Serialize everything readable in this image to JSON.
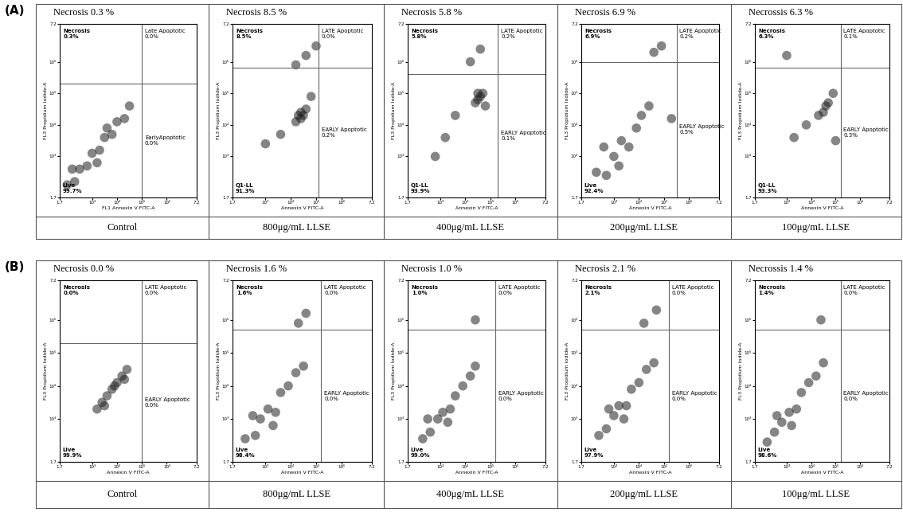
{
  "chart_data": {
    "type": "scatter",
    "axes": {
      "xlim": [
        1.7,
        7.2
      ],
      "ylim": [
        1.7,
        7.2
      ],
      "xticks": [
        {
          "value": 1.7,
          "label": "1.7"
        },
        {
          "value": 3,
          "label": "10³"
        },
        {
          "value": 4,
          "label": "10⁴"
        },
        {
          "value": 5,
          "label": "10⁵"
        },
        {
          "value": 6,
          "label": "10⁶"
        },
        {
          "value": 7.2,
          "label": "7.2"
        }
      ],
      "yticks": [
        {
          "value": 1.7,
          "label": "1.7"
        },
        {
          "value": 3,
          "label": "10³"
        },
        {
          "value": 4,
          "label": "10⁴"
        },
        {
          "value": 5,
          "label": "10⁵"
        },
        {
          "value": 6,
          "label": "10⁶"
        },
        {
          "value": 7.2,
          "label": "7.2"
        }
      ],
      "color": "#222222"
    },
    "rows": [
      {
        "label": "(A)",
        "panels": [
          {
            "header": "Necrosis 0.3 %",
            "condition": "Control",
            "xlabel": "FL1 Annexin V FITC-A",
            "ylabel": "FL3 Propidium Iodide-A",
            "gate": [
              5.0,
              5.3
            ],
            "quadrants": {
              "ul": [
                "Necrosis",
                "0.3%"
              ],
              "ur": [
                "Late Apoptotic",
                "0.0%"
              ],
              "lr": [
                "EarlyApoptotic",
                "0.0%"
              ],
              "ll": [
                "Live",
                "99.7%"
              ]
            },
            "points": [
              [
                2.0,
                2.1
              ],
              [
                2.3,
                2.2
              ],
              [
                2.5,
                2.6
              ],
              [
                2.8,
                2.7
              ],
              [
                3.0,
                3.1
              ],
              [
                3.3,
                3.2
              ],
              [
                3.5,
                3.6
              ],
              [
                3.8,
                3.7
              ],
              [
                4.0,
                4.1
              ],
              [
                4.3,
                4.2
              ],
              [
                4.5,
                4.6
              ],
              [
                2.2,
                2.6
              ],
              [
                3.2,
                2.8
              ],
              [
                3.6,
                3.9
              ]
            ]
          },
          {
            "header": "Necrosis 8.5 %",
            "condition": "800μg/mL LLSE",
            "xlabel": "Annexin V FITC-A",
            "ylabel": "FL3 Propidium Iodide-A",
            "gate": [
              5.1,
              5.8
            ],
            "quadrants": {
              "ul": [
                "Necrosis",
                "8.5%"
              ],
              "ur": [
                "LATE Apoptotic",
                "0.0%"
              ],
              "lr": [
                "EARLY Apoptotic",
                "0.2%"
              ],
              "ll": [
                "Q1-LL",
                "91.3%"
              ]
            },
            "points": [
              [
                4.3,
                4.3
              ],
              [
                4.4,
                4.4
              ],
              [
                4.5,
                4.3
              ],
              [
                4.4,
                4.2
              ],
              [
                4.2,
                4.1
              ],
              [
                4.6,
                4.5
              ],
              [
                3.6,
                3.7
              ],
              [
                3.0,
                3.4
              ],
              [
                4.8,
                4.9
              ],
              [
                4.6,
                6.2
              ],
              [
                5.0,
                6.5
              ],
              [
                4.2,
                5.9
              ]
            ]
          },
          {
            "header": "Necrosis 5.8 %",
            "condition": "400μg/mL LLSE",
            "xlabel": "Annexin V FITC-A",
            "ylabel": "FL3 Propidium Iodide-A",
            "gate": [
              5.3,
              5.6
            ],
            "quadrants": {
              "ul": [
                "Necrosis",
                "5.8%"
              ],
              "ur": [
                "LATE Apoptotic",
                "0.2%"
              ],
              "lr": [
                "EARLY Apoptotic",
                "0.1%"
              ],
              "ll": [
                "Q1-LL",
                "93.9%"
              ]
            },
            "points": [
              [
                4.5,
                4.8
              ],
              [
                4.6,
                4.9
              ],
              [
                4.7,
                5.0
              ],
              [
                4.5,
                5.0
              ],
              [
                4.4,
                4.7
              ],
              [
                3.6,
                4.3
              ],
              [
                3.2,
                3.6
              ],
              [
                2.8,
                3.0
              ],
              [
                4.2,
                6.0
              ],
              [
                4.6,
                6.4
              ],
              [
                4.8,
                4.6
              ]
            ]
          },
          {
            "header": "Necrosis 6.9 %",
            "condition": "200μg/mL LLSE",
            "xlabel": "Annexin V FITC-A",
            "ylabel": "FL3 Propidium Iodide-A",
            "gate": [
              5.5,
              6.0
            ],
            "quadrants": {
              "ul": [
                "Necrosis",
                "6.9%"
              ],
              "ur": [
                "LATE Apoptotic",
                "0.2%"
              ],
              "lr": [
                "EARLY Apoptotic",
                "0.5%"
              ],
              "ll": [
                "Live",
                "92.4%"
              ]
            },
            "points": [
              [
                2.3,
                2.5
              ],
              [
                2.7,
                2.4
              ],
              [
                3.0,
                3.0
              ],
              [
                3.3,
                3.5
              ],
              [
                3.6,
                3.3
              ],
              [
                3.9,
                3.9
              ],
              [
                4.1,
                4.3
              ],
              [
                4.4,
                4.6
              ],
              [
                2.6,
                3.3
              ],
              [
                3.2,
                2.7
              ],
              [
                4.6,
                6.3
              ],
              [
                4.9,
                6.5
              ],
              [
                5.3,
                4.2
              ]
            ]
          },
          {
            "header": "Necrossis 6.3 %",
            "condition": "100μg/mL LLSE",
            "xlabel": "Annexin V FITC-A",
            "ylabel": "FL3 Propidium Iodide-A",
            "gate": [
              5.2,
              5.8
            ],
            "quadrants": {
              "ul": [
                "Necrosis",
                "6.3%"
              ],
              "ur": [
                "LATE Apoptotic",
                "0.1%"
              ],
              "lr": [
                "EARLY Apoptotic",
                "0.3%"
              ],
              "ll": [
                "Q1-LL",
                "93.3%"
              ]
            },
            "points": [
              [
                4.6,
                4.6
              ],
              [
                4.7,
                4.7
              ],
              [
                4.5,
                4.4
              ],
              [
                4.3,
                4.3
              ],
              [
                3.8,
                4.0
              ],
              [
                3.3,
                3.6
              ],
              [
                4.9,
                5.0
              ],
              [
                3.0,
                6.2
              ],
              [
                5.0,
                3.5
              ]
            ]
          }
        ]
      },
      {
        "label": "(B)",
        "panels": [
          {
            "header": "Necrosis 0.0 %",
            "condition": "Control",
            "xlabel": "Annexin V FITC-A",
            "ylabel": "FL3 Propidium Iodide-A",
            "gate": [
              5.0,
              5.3
            ],
            "quadrants": {
              "ul": [
                "Necrosis",
                "0.0%"
              ],
              "ur": [
                "LATE Apoptotic",
                "0.0%"
              ],
              "lr": [
                "EARLY Apoptotic",
                "0.0%"
              ],
              "ll": [
                "Live",
                "99.9%"
              ]
            },
            "points": [
              [
                3.2,
                3.3
              ],
              [
                3.4,
                3.5
              ],
              [
                3.6,
                3.7
              ],
              [
                3.8,
                3.9
              ],
              [
                4.0,
                4.1
              ],
              [
                4.2,
                4.3
              ],
              [
                4.4,
                4.5
              ],
              [
                3.5,
                3.4
              ],
              [
                3.9,
                4.0
              ],
              [
                4.3,
                4.2
              ]
            ]
          },
          {
            "header": "Necrosis 1.6 %",
            "condition": "800μg/mL LLSE",
            "xlabel": "Annexin V FITC-A",
            "ylabel": "FL3 Propidium Iodide-A",
            "gate": [
              5.2,
              5.7
            ],
            "quadrants": {
              "ul": [
                "Necrosis",
                "1.6%"
              ],
              "ur": [
                "LATE Apoptotic",
                "0.0%"
              ],
              "lr": [
                "EARLY Apoptotic",
                "0.0%"
              ],
              "ll": [
                "Live",
                "98.4%"
              ]
            },
            "points": [
              [
                2.2,
                2.4
              ],
              [
                2.6,
                2.5
              ],
              [
                2.8,
                3.0
              ],
              [
                3.1,
                3.3
              ],
              [
                3.4,
                3.2
              ],
              [
                3.6,
                3.8
              ],
              [
                3.9,
                4.0
              ],
              [
                4.2,
                4.4
              ],
              [
                4.5,
                4.6
              ],
              [
                2.5,
                3.1
              ],
              [
                3.3,
                2.8
              ],
              [
                4.3,
                5.9
              ],
              [
                4.6,
                6.2
              ]
            ]
          },
          {
            "header": "Necrosis 1.0 %",
            "condition": "400μg/mL LLSE",
            "xlabel": "Annexin V FITC-A",
            "ylabel": "FL3 Propidium Iodide-A",
            "gate": [
              5.2,
              5.7
            ],
            "quadrants": {
              "ul": [
                "Necrosis",
                "1.0%"
              ],
              "ur": [
                "LATE Apoptotic",
                "0.0%"
              ],
              "lr": [
                "EARLY Apoptotic",
                "0.0%"
              ],
              "ll": [
                "Live",
                "99.0%"
              ]
            },
            "points": [
              [
                2.3,
                2.4
              ],
              [
                2.6,
                2.6
              ],
              [
                2.9,
                3.0
              ],
              [
                3.1,
                3.2
              ],
              [
                3.4,
                3.3
              ],
              [
                3.6,
                3.7
              ],
              [
                3.9,
                4.0
              ],
              [
                4.2,
                4.3
              ],
              [
                4.4,
                4.6
              ],
              [
                2.5,
                3.0
              ],
              [
                3.3,
                2.9
              ],
              [
                4.4,
                6.0
              ]
            ]
          },
          {
            "header": "Necrosis 2.1 %",
            "condition": "200μg/mL LLSE",
            "xlabel": "Annexin V FITC-A",
            "ylabel": "FL3 Propidium Iodide-A",
            "gate": [
              5.2,
              5.7
            ],
            "quadrants": {
              "ul": [
                "Necrosis",
                "2.1%"
              ],
              "ur": [
                "LATE Apoptotic",
                "0.0%"
              ],
              "lr": [
                "EARLY Apoptotic",
                "0.0%"
              ],
              "ll": [
                "Live",
                "97.9%"
              ]
            },
            "points": [
              [
                2.4,
                2.5
              ],
              [
                2.7,
                2.7
              ],
              [
                3.0,
                3.1
              ],
              [
                3.2,
                3.4
              ],
              [
                3.5,
                3.4
              ],
              [
                3.7,
                3.9
              ],
              [
                4.0,
                4.1
              ],
              [
                4.3,
                4.5
              ],
              [
                4.6,
                4.7
              ],
              [
                2.8,
                3.3
              ],
              [
                3.4,
                3.0
              ],
              [
                4.2,
                5.9
              ],
              [
                4.7,
                6.3
              ]
            ]
          },
          {
            "header": "Necrossis 1.4 %",
            "condition": "100μg/mL LLSE",
            "xlabel": "Annexin V FITC-A",
            "ylabel": "FL3 Propidium Iodide-A",
            "gate": [
              5.2,
              5.7
            ],
            "quadrants": {
              "ul": [
                "Necrosis",
                "1.4%"
              ],
              "ur": [
                "LATE Apoptotic",
                "0.0%"
              ],
              "lr": [
                "EARLY Apoptotic",
                "0.0%"
              ],
              "ll": [
                "Live",
                "98.6%"
              ]
            },
            "points": [
              [
                2.2,
                2.3
              ],
              [
                2.5,
                2.6
              ],
              [
                2.8,
                2.9
              ],
              [
                3.1,
                3.2
              ],
              [
                3.4,
                3.3
              ],
              [
                3.6,
                3.8
              ],
              [
                3.9,
                4.1
              ],
              [
                4.2,
                4.3
              ],
              [
                4.5,
                4.7
              ],
              [
                2.6,
                3.1
              ],
              [
                3.2,
                2.8
              ],
              [
                4.4,
                6.0
              ]
            ]
          }
        ]
      }
    ]
  }
}
